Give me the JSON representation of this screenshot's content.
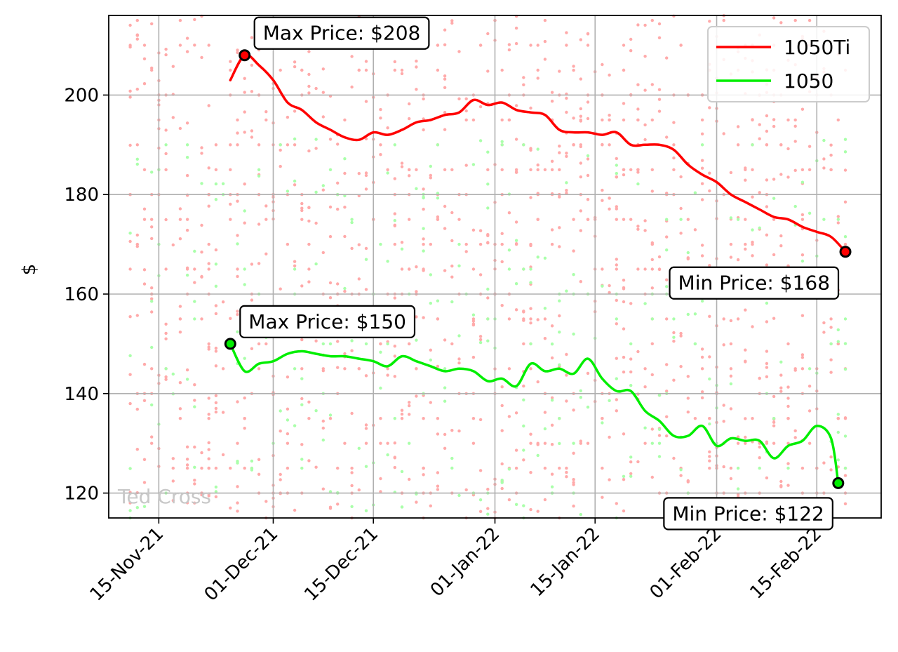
{
  "chart_data": {
    "type": "line",
    "title": "",
    "xlabel": "",
    "ylabel": "$",
    "ylim": [
      115,
      216
    ],
    "xlim": [
      "2021-11-08",
      "2022-02-24"
    ],
    "grid": true,
    "legend_position": "top-right",
    "x_ticks": [
      {
        "date": "2021-11-15",
        "label": "15-Nov-21"
      },
      {
        "date": "2021-12-01",
        "label": "01-Dec-21"
      },
      {
        "date": "2021-12-15",
        "label": "15-Dec-21"
      },
      {
        "date": "2022-01-01",
        "label": "01-Jan-22"
      },
      {
        "date": "2022-01-15",
        "label": "15-Jan-22"
      },
      {
        "date": "2022-02-01",
        "label": "01-Feb-22"
      },
      {
        "date": "2022-02-15",
        "label": "15-Feb-22"
      }
    ],
    "y_ticks": [
      120,
      140,
      160,
      180,
      200
    ],
    "watermark": "Ted Cross",
    "series": [
      {
        "name": "1050Ti",
        "color": "#ff0000",
        "scatter_color": "#ffaaaa",
        "points": [
          [
            "2021-11-25",
            203
          ],
          [
            "2021-11-27",
            208
          ],
          [
            "2021-11-29",
            206
          ],
          [
            "2021-12-01",
            203
          ],
          [
            "2021-12-03",
            198.5
          ],
          [
            "2021-12-05",
            197
          ],
          [
            "2021-12-07",
            194.5
          ],
          [
            "2021-12-09",
            193
          ],
          [
            "2021-12-11",
            191.5
          ],
          [
            "2021-12-13",
            191
          ],
          [
            "2021-12-15",
            192.5
          ],
          [
            "2021-12-17",
            192
          ],
          [
            "2021-12-19",
            193
          ],
          [
            "2021-12-21",
            194.5
          ],
          [
            "2021-12-23",
            195
          ],
          [
            "2021-12-25",
            196
          ],
          [
            "2021-12-27",
            196.5
          ],
          [
            "2021-12-29",
            199
          ],
          [
            "2021-12-31",
            198
          ],
          [
            "2022-01-02",
            198.5
          ],
          [
            "2022-01-04",
            197
          ],
          [
            "2022-01-06",
            196.5
          ],
          [
            "2022-01-08",
            196
          ],
          [
            "2022-01-10",
            193
          ],
          [
            "2022-01-12",
            192.5
          ],
          [
            "2022-01-14",
            192.5
          ],
          [
            "2022-01-16",
            192
          ],
          [
            "2022-01-18",
            192.5
          ],
          [
            "2022-01-20",
            190
          ],
          [
            "2022-01-22",
            190
          ],
          [
            "2022-01-24",
            190
          ],
          [
            "2022-01-26",
            189
          ],
          [
            "2022-01-28",
            186
          ],
          [
            "2022-01-30",
            184
          ],
          [
            "2022-02-01",
            182.5
          ],
          [
            "2022-02-03",
            180
          ],
          [
            "2022-02-05",
            178.5
          ],
          [
            "2022-02-07",
            177
          ],
          [
            "2022-02-09",
            175.5
          ],
          [
            "2022-02-11",
            175
          ],
          [
            "2022-02-13",
            173.5
          ],
          [
            "2022-02-15",
            172.5
          ],
          [
            "2022-02-17",
            171.5
          ],
          [
            "2022-02-19",
            168.5
          ]
        ],
        "max": {
          "date": "2021-11-27",
          "value": 208,
          "label": "Max Price: $208"
        },
        "min": {
          "date": "2022-02-19",
          "value": 168.5,
          "label": "Min Price: $168"
        }
      },
      {
        "name": "1050",
        "color": "#00ee00",
        "scatter_color": "#aaffaa",
        "points": [
          [
            "2021-11-25",
            150
          ],
          [
            "2021-11-27",
            144.5
          ],
          [
            "2021-11-29",
            146
          ],
          [
            "2021-12-01",
            146.5
          ],
          [
            "2021-12-03",
            148
          ],
          [
            "2021-12-05",
            148.5
          ],
          [
            "2021-12-07",
            148
          ],
          [
            "2021-12-09",
            147.5
          ],
          [
            "2021-12-11",
            147.5
          ],
          [
            "2021-12-13",
            147
          ],
          [
            "2021-12-15",
            146.5
          ],
          [
            "2021-12-17",
            145.5
          ],
          [
            "2021-12-19",
            147.5
          ],
          [
            "2021-12-21",
            146.5
          ],
          [
            "2021-12-23",
            145.5
          ],
          [
            "2021-12-25",
            144.5
          ],
          [
            "2021-12-27",
            145
          ],
          [
            "2021-12-29",
            144.5
          ],
          [
            "2021-12-31",
            142.5
          ],
          [
            "2022-01-02",
            143
          ],
          [
            "2022-01-04",
            141.5
          ],
          [
            "2022-01-06",
            146
          ],
          [
            "2022-01-08",
            144.5
          ],
          [
            "2022-01-10",
            145
          ],
          [
            "2022-01-12",
            144
          ],
          [
            "2022-01-14",
            147
          ],
          [
            "2022-01-16",
            143
          ],
          [
            "2022-01-18",
            140.5
          ],
          [
            "2022-01-20",
            140.5
          ],
          [
            "2022-01-22",
            136.5
          ],
          [
            "2022-01-24",
            134.5
          ],
          [
            "2022-01-26",
            131.5
          ],
          [
            "2022-01-28",
            131.5
          ],
          [
            "2022-01-30",
            133.5
          ],
          [
            "2022-02-01",
            129.5
          ],
          [
            "2022-02-03",
            131
          ],
          [
            "2022-02-05",
            130.5
          ],
          [
            "2022-02-07",
            130.5
          ],
          [
            "2022-02-09",
            127
          ],
          [
            "2022-02-11",
            129.5
          ],
          [
            "2022-02-13",
            130.5
          ],
          [
            "2022-02-15",
            133.5
          ],
          [
            "2022-02-17",
            131
          ],
          [
            "2022-02-18",
            122
          ]
        ],
        "max": {
          "date": "2021-11-25",
          "value": 150,
          "label": "Max Price: $150"
        },
        "min": {
          "date": "2022-02-18",
          "value": 122,
          "label": "Min Price: $122"
        }
      }
    ]
  }
}
